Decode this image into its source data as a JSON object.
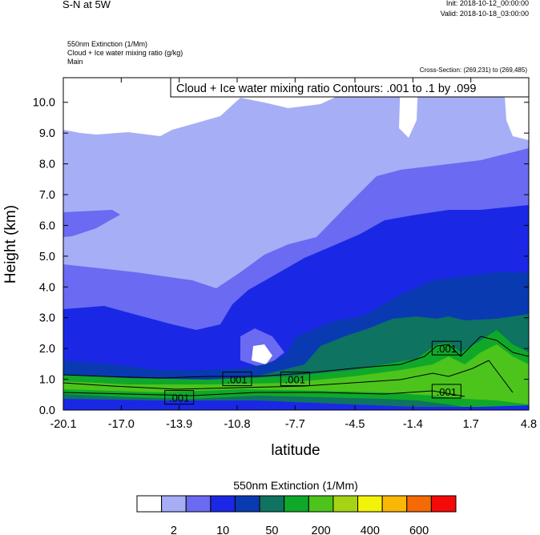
{
  "header": {
    "title": "S-N at 5W",
    "init": "Init: 2018-10-12_00:00:00",
    "valid": "Valid: 2018-10-18_03:00:00",
    "sub1": "550nm Extinction   (1/Mm)",
    "sub2": "Cloud + Ice water mixing ratio   (g/kg)",
    "sub3": "Main",
    "cross_section": "Cross-Section: (269,231) to (269,485)"
  },
  "chart_data": {
    "type": "contour",
    "title": "",
    "xlabel": "latitude",
    "ylabel": "Height (km)",
    "xlim": [
      -20.1,
      4.8
    ],
    "ylim": [
      0.0,
      10.8
    ],
    "x_ticks": [
      "-20.1",
      "-17.0",
      "-13.9",
      "-10.8",
      "-7.7",
      "-4.5",
      "-1.4",
      "1.7",
      "4.8"
    ],
    "x_tick_values": [
      -20.1,
      -17.0,
      -13.9,
      -10.8,
      -7.7,
      -4.5,
      -1.4,
      1.7,
      4.8
    ],
    "y_ticks": [
      "0.0",
      "1.0",
      "2.0",
      "3.0",
      "4.0",
      "5.0",
      "6.0",
      "7.0",
      "8.0",
      "9.0",
      "10.0"
    ],
    "y_tick_values": [
      0,
      1,
      2,
      3,
      4,
      5,
      6,
      7,
      8,
      9,
      10
    ],
    "contour_title": "Cloud + Ice water mixing ratio Contours: .001 to .1 by .099",
    "contour_labels": [
      {
        "text": ".001",
        "x": -13.9,
        "y": 0.4
      },
      {
        "text": ".001",
        "x": -10.8,
        "y": 1.0
      },
      {
        "text": ".001",
        "x": -7.7,
        "y": 1.0
      },
      {
        "text": ".001",
        "x": 0.4,
        "y": 2.0
      },
      {
        "text": ".001",
        "x": 0.4,
        "y": 0.6
      }
    ],
    "colorbar": {
      "title": "550nm Extinction  (1/Mm)",
      "colors": [
        "#ffffff",
        "#a6aef6",
        "#6a6af2",
        "#1a28e6",
        "#0a3ab2",
        "#0e7360",
        "#10a828",
        "#4cc41c",
        "#a6d414",
        "#f2f20a",
        "#f9b805",
        "#f56a05",
        "#f50a0a"
      ],
      "labels": [
        "2",
        "10",
        "50",
        "200",
        "400",
        "600"
      ]
    }
  }
}
